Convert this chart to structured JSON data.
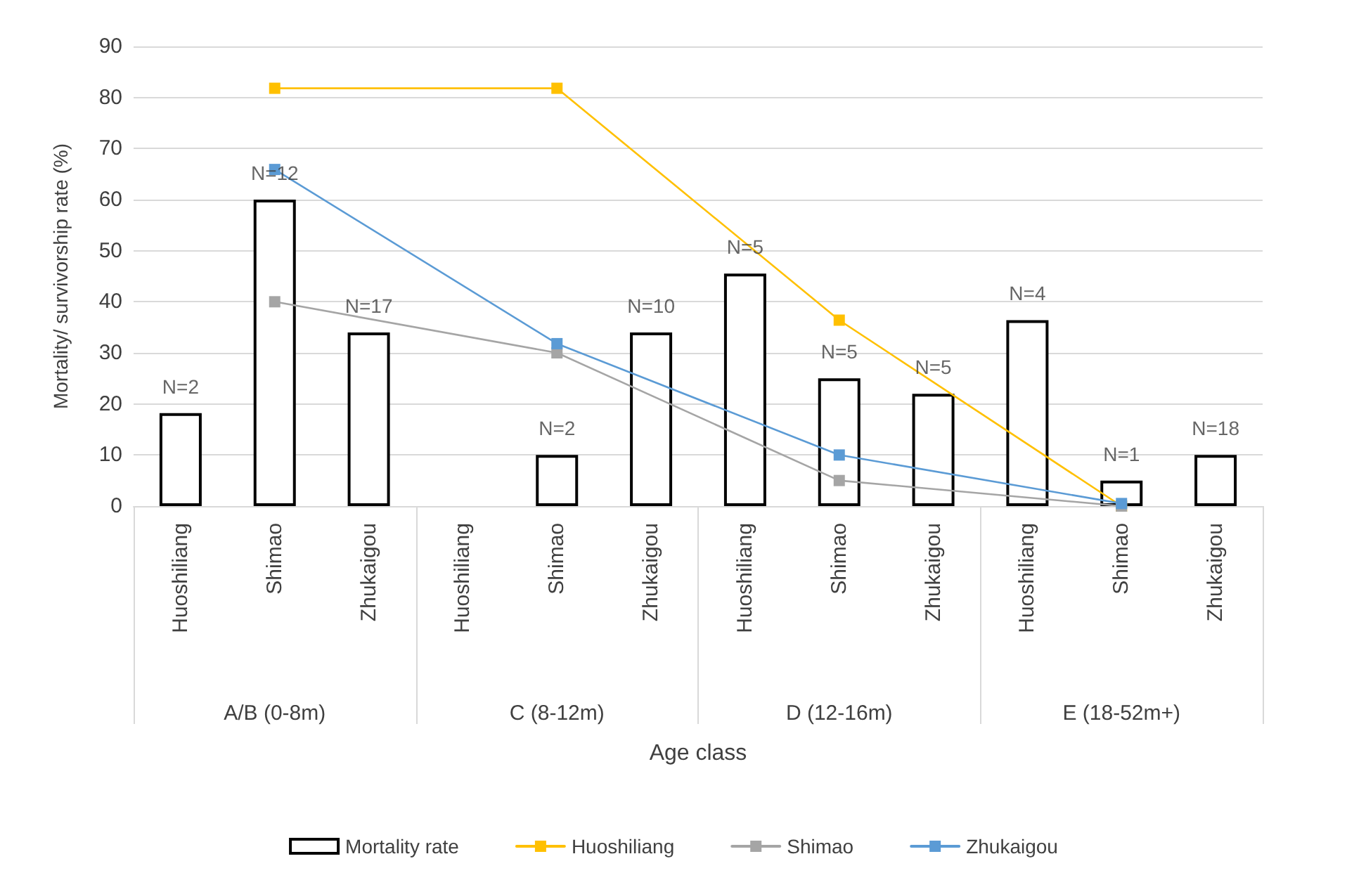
{
  "chart_data": {
    "type": "bar",
    "ylabel": "Mortality/ survivorship rate (%)",
    "xlabel": "Age class",
    "categories": [
      "Huoshiliang",
      "Shimao",
      "Zhukaigou",
      "Huoshiliang",
      "Shimao",
      "Zhukaigou",
      "Huoshiliang",
      "Shimao",
      "Zhukaigou",
      "Huoshiliang",
      "Shimao",
      "Zhukaigou"
    ],
    "annotations": [
      "A/B (0-8m)",
      "C (8-12m)",
      "D (12-16m)",
      "E (18-52m+)",
      "N=2",
      "N=12",
      "N=17",
      "N=2",
      "N=10",
      "N=5",
      "N=5",
      "N=5",
      "N=4",
      "N=1",
      "N=18"
    ],
    "series": [
      {
        "name": "Mortality rate",
        "type": "bar",
        "color": "#000000",
        "values": [
          18.2,
          60,
          34,
          null,
          10,
          34,
          45.5,
          25,
          22,
          36.4,
          5,
          10
        ]
      },
      {
        "name": "Huoshiliang",
        "type": "line",
        "color": "#ffc000",
        "values": [
          null,
          81.8,
          null,
          null,
          81.8,
          null,
          null,
          36.4,
          null,
          null,
          0,
          null
        ]
      },
      {
        "name": "Shimao",
        "type": "line",
        "color": "#a5a5a5",
        "values": [
          null,
          40,
          null,
          null,
          30,
          null,
          null,
          5,
          null,
          null,
          0,
          null
        ]
      },
      {
        "name": "Zhukaigou",
        "type": "line",
        "color": "#5b9bd5",
        "values": [
          null,
          65.9,
          null,
          null,
          31.8,
          null,
          null,
          10,
          null,
          null,
          0.5,
          null
        ]
      }
    ],
    "ylim": [
      0,
      90
    ],
    "yticks": [
      0,
      10,
      20,
      30,
      40,
      50,
      60,
      70,
      80,
      90
    ],
    "grid": "y",
    "legend": "bottom",
    "marker": "square",
    "line_style": "solid"
  }
}
